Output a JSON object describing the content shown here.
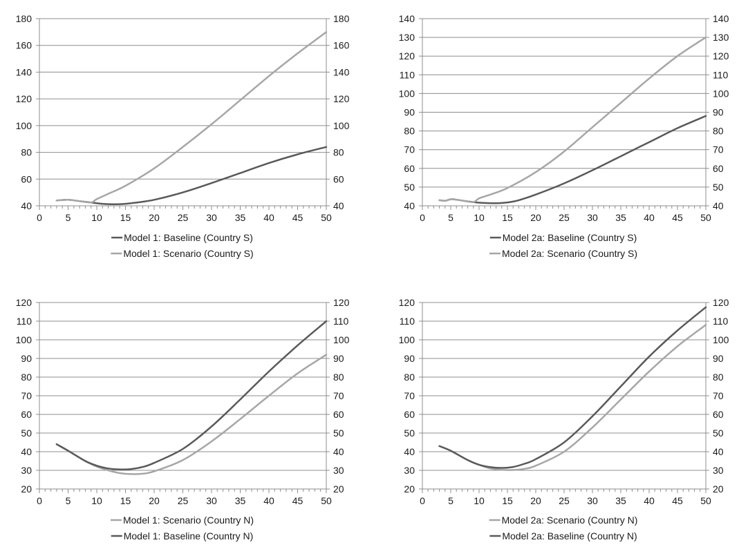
{
  "chart_data": [
    {
      "type": "line",
      "title": "",
      "xlabel": "",
      "ylabel": "",
      "xlim": [
        0,
        50
      ],
      "x_ticks": [
        0,
        5,
        10,
        15,
        20,
        25,
        30,
        35,
        40,
        45,
        50
      ],
      "ylim": [
        40,
        180
      ],
      "y_ticks": [
        40,
        60,
        80,
        100,
        120,
        140,
        160,
        180
      ],
      "grid": "horizontal",
      "legend_position": "bottom",
      "series": [
        {
          "name": "Model 1: Baseline (Country S)",
          "color": "#595959",
          "x": [
            3,
            5,
            7,
            9,
            11,
            13,
            15,
            17,
            20,
            25,
            30,
            35,
            40,
            45,
            50
          ],
          "y": [
            44,
            44.5,
            43.5,
            42.5,
            41.5,
            41.2,
            41.5,
            42.5,
            44.5,
            50,
            57,
            64.5,
            72,
            78.5,
            84
          ]
        },
        {
          "name": "Model 1: Scenario (Country S)",
          "color": "#a6a6a6",
          "x": [
            3,
            5,
            7,
            9,
            10,
            12,
            15,
            20,
            25,
            30,
            35,
            40,
            45,
            50
          ],
          "y": [
            44,
            44.5,
            43.5,
            42.5,
            45,
            49,
            55,
            68,
            84,
            101,
            119,
            137,
            154,
            170
          ]
        }
      ]
    },
    {
      "type": "line",
      "title": "",
      "xlabel": "",
      "ylabel": "",
      "xlim": [
        0,
        50
      ],
      "x_ticks": [
        0,
        5,
        10,
        15,
        20,
        25,
        30,
        35,
        40,
        45,
        50
      ],
      "ylim": [
        40,
        140
      ],
      "y_ticks": [
        40,
        50,
        60,
        70,
        80,
        90,
        100,
        110,
        120,
        130,
        140
      ],
      "grid": "horizontal",
      "legend_position": "bottom",
      "series": [
        {
          "name": "Model 2a: Baseline (Country S)",
          "color": "#595959",
          "x": [
            3,
            4,
            5,
            6,
            7,
            9,
            11,
            13,
            15,
            17,
            20,
            25,
            30,
            35,
            40,
            45,
            50
          ],
          "y": [
            43,
            42.7,
            43.5,
            43.3,
            42.8,
            42,
            41.5,
            41.4,
            41.8,
            43,
            46,
            52,
            59,
            66.5,
            74,
            81.5,
            88
          ]
        },
        {
          "name": "Model 2a: Scenario (Country S)",
          "color": "#a6a6a6",
          "x": [
            3,
            4,
            5,
            6,
            7,
            9,
            10,
            12,
            15,
            20,
            25,
            30,
            35,
            40,
            45,
            50
          ],
          "y": [
            43,
            42.7,
            43.5,
            43.3,
            42.8,
            42,
            44,
            46,
            49.5,
            58,
            69,
            82,
            95,
            108,
            120,
            130
          ]
        }
      ]
    },
    {
      "type": "line",
      "title": "",
      "xlabel": "",
      "ylabel": "",
      "xlim": [
        0,
        50
      ],
      "x_ticks": [
        0,
        5,
        10,
        15,
        20,
        25,
        30,
        35,
        40,
        45,
        50
      ],
      "ylim": [
        20,
        120
      ],
      "y_ticks": [
        20,
        30,
        40,
        50,
        60,
        70,
        80,
        90,
        100,
        110,
        120
      ],
      "grid": "horizontal",
      "legend_position": "bottom",
      "series": [
        {
          "name": "Model 1: Scenario (Country N)",
          "color": "#a6a6a6",
          "x": [
            3,
            5,
            8,
            10,
            12,
            14,
            16,
            18,
            20,
            25,
            30,
            35,
            40,
            45,
            50
          ],
          "y": [
            44,
            40.5,
            35,
            32,
            30,
            28.5,
            28,
            28.2,
            29.5,
            35.5,
            45.5,
            57.5,
            70,
            82,
            92
          ]
        },
        {
          "name": "Model 1: Baseline (Country N)",
          "color": "#595959",
          "x": [
            3,
            5,
            8,
            10,
            12,
            14,
            16,
            18,
            20,
            25,
            30,
            35,
            40,
            45,
            50
          ],
          "y": [
            44,
            40.5,
            35,
            32.5,
            31,
            30.5,
            30.7,
            31.8,
            34,
            41.5,
            53.5,
            68,
            83,
            97,
            110
          ]
        }
      ]
    },
    {
      "type": "line",
      "title": "",
      "xlabel": "",
      "ylabel": "",
      "xlim": [
        0,
        50
      ],
      "x_ticks": [
        0,
        5,
        10,
        15,
        20,
        25,
        30,
        35,
        40,
        45,
        50
      ],
      "ylim": [
        20,
        120
      ],
      "y_ticks": [
        20,
        30,
        40,
        50,
        60,
        70,
        80,
        90,
        100,
        110,
        120
      ],
      "grid": "horizontal",
      "legend_position": "bottom",
      "series": [
        {
          "name": "Model 2a: Scenario (Country N)",
          "color": "#a6a6a6",
          "x": [
            3,
            5,
            8,
            10,
            12,
            14,
            16,
            18,
            20,
            25,
            30,
            35,
            40,
            45,
            50
          ],
          "y": [
            43,
            40.5,
            35.5,
            33,
            31,
            30.3,
            30.2,
            30.8,
            32.5,
            40,
            53,
            68,
            83,
            96.5,
            108
          ]
        },
        {
          "name": "Model 2a: Baseline (Country N)",
          "color": "#595959",
          "x": [
            3,
            5,
            8,
            10,
            12,
            14,
            16,
            18,
            20,
            25,
            30,
            35,
            40,
            45,
            50
          ],
          "y": [
            43,
            40.5,
            35.5,
            33,
            31.7,
            31.3,
            31.8,
            33.5,
            36,
            45,
            59,
            75,
            91,
            105,
            117.5
          ]
        }
      ]
    }
  ]
}
